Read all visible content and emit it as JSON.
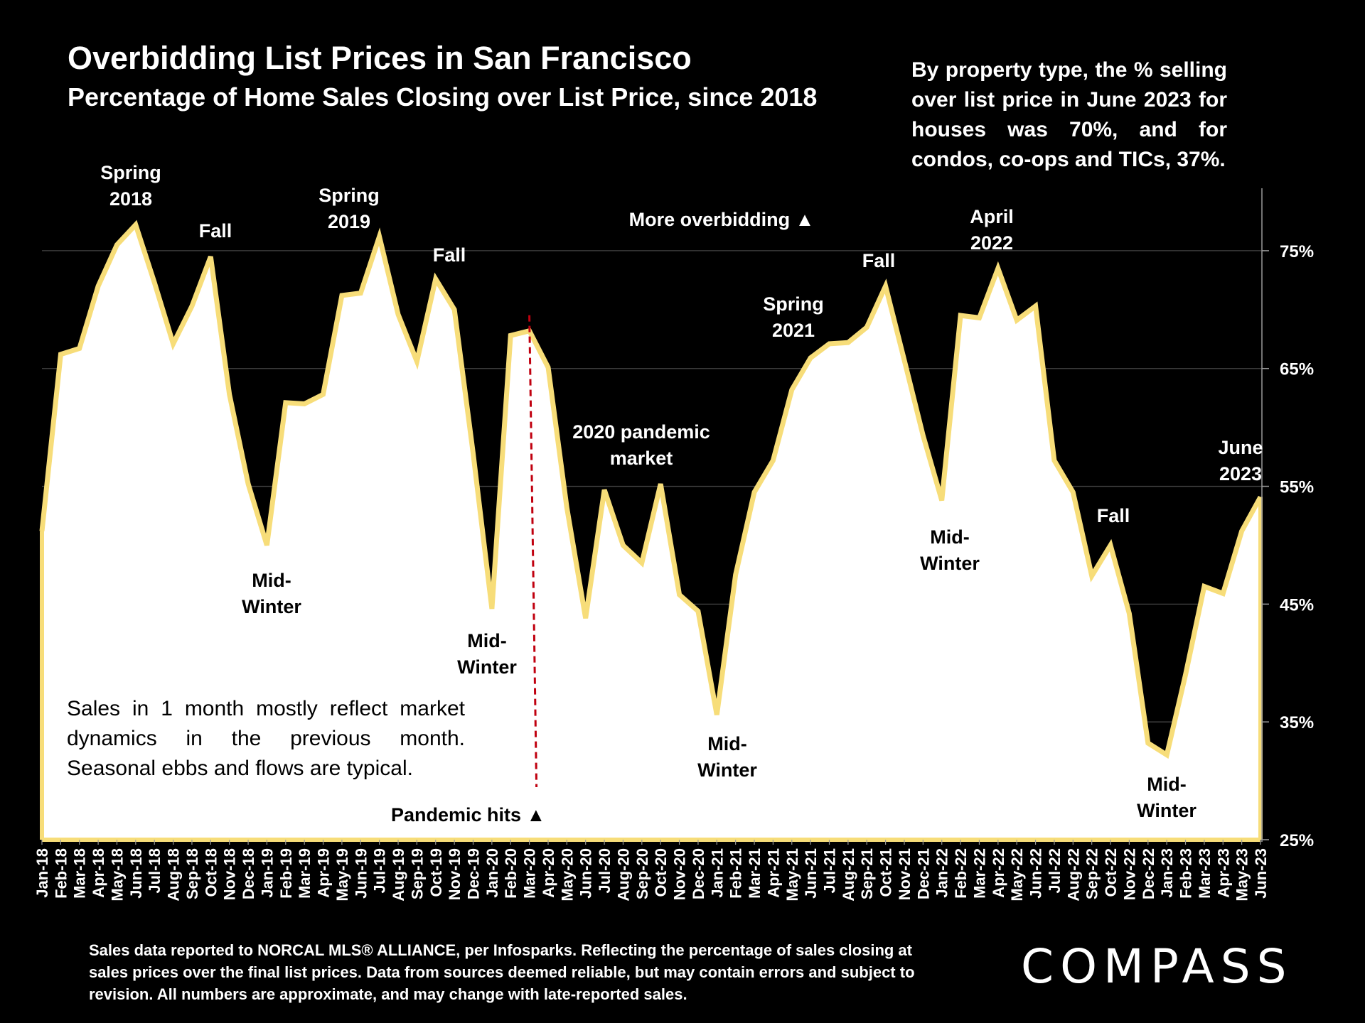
{
  "header": {
    "title": "Overbidding List Prices in San Francisco",
    "subtitle": "Percentage of Home Sales Closing over List Price, since 2018"
  },
  "side_note": "By property type, the % selling over list price in June 2023 for houses was 70%, and for condos, co-ops and TICs, 37%.",
  "note_box": "Sales in 1 month mostly reflect market dynamics in the previous month. Seasonal ebbs and flows are typical.",
  "footer": "Sales data reported to NORCAL MLS® ALLIANCE, per Infosparks. Reflecting the percentage of sales closing at sales prices over the final list prices. Data from sources deemed reliable, but may contain errors and subject to revision. All numbers are approximate, and may change with late-reported sales.",
  "logo": "COMPASS",
  "colors": {
    "background": "#000000",
    "area": "#ffffff",
    "line": "#f7dd79",
    "pandemic_marker": "#c0000f",
    "text": "#ffffff"
  },
  "chart_data": {
    "type": "area",
    "categories": [
      "Jan-18",
      "Feb-18",
      "Mar-18",
      "Apr-18",
      "May-18",
      "Jun-18",
      "Jul-18",
      "Aug-18",
      "Sep-18",
      "Oct-18",
      "Nov-18",
      "Dec-18",
      "Jan-19",
      "Feb-19",
      "Mar-19",
      "Apr-19",
      "May-19",
      "Jun-19",
      "Jul-19",
      "Aug-19",
      "Sep-19",
      "Oct-19",
      "Nov-19",
      "Dec-19",
      "Jan-20",
      "Feb-20",
      "Mar-20",
      "Apr-20",
      "May-20",
      "Jun-20",
      "Jul-20",
      "Aug-20",
      "Sep-20",
      "Oct-20",
      "Nov-20",
      "Dec-20",
      "Jan-21",
      "Feb-21",
      "Mar-21",
      "Apr-21",
      "May-21",
      "Jun-21",
      "Jul-21",
      "Aug-21",
      "Sep-21",
      "Oct-21",
      "Nov-21",
      "Dec-21",
      "Jan-22",
      "Feb-22",
      "Mar-22",
      "Apr-22",
      "May-22",
      "Jun-22",
      "Jul-22",
      "Aug-22",
      "Sep-22",
      "Oct-22",
      "Nov-22",
      "Dec-22",
      "Jan-23",
      "Feb-23",
      "Mar-23",
      "Apr-23",
      "May-23",
      "Jun-23"
    ],
    "values": [
      51.2,
      66.2,
      66.7,
      72.0,
      75.5,
      77.2,
      72.3,
      67.1,
      70.3,
      74.5,
      62.8,
      55.2,
      50.0,
      62.1,
      62.0,
      62.8,
      71.2,
      71.4,
      76.2,
      69.6,
      65.6,
      72.6,
      70.0,
      57.8,
      44.6,
      67.8,
      68.2,
      65.1,
      53.2,
      43.8,
      54.7,
      50.0,
      48.5,
      55.2,
      45.8,
      44.4,
      35.6,
      47.5,
      54.5,
      57.2,
      63.2,
      65.9,
      67.1,
      67.2,
      68.5,
      72.0,
      65.7,
      59.3,
      53.8,
      69.5,
      69.3,
      73.5,
      69.1,
      70.3,
      57.2,
      54.5,
      47.4,
      50.0,
      44.2,
      33.2,
      32.2,
      39.0,
      46.5,
      45.9,
      51.2,
      54.1
    ],
    "ylim": [
      25,
      80
    ],
    "yticks": [
      "25%",
      "35%",
      "45%",
      "55%",
      "65%",
      "75%"
    ],
    "ytick_values": [
      25,
      35,
      45,
      55,
      65,
      75
    ],
    "y_axis_position": "right",
    "grid": true,
    "annotations": [
      {
        "lines": [
          "Spring",
          "2018"
        ],
        "color": "white"
      },
      {
        "lines": [
          "Fall"
        ],
        "color": "white"
      },
      {
        "lines": [
          "Spring",
          "2019"
        ],
        "color": "white"
      },
      {
        "lines": [
          "Fall"
        ],
        "color": "white"
      },
      {
        "lines": [
          "More overbidding ▲"
        ],
        "color": "white"
      },
      {
        "lines": [
          "Spring",
          "2021"
        ],
        "color": "white"
      },
      {
        "lines": [
          "Fall"
        ],
        "color": "white"
      },
      {
        "lines": [
          "April",
          "2022"
        ],
        "color": "white"
      },
      {
        "lines": [
          "June",
          "2023"
        ],
        "color": "white"
      },
      {
        "lines": [
          "Fall"
        ],
        "color": "white"
      },
      {
        "lines": [
          "2020 pandemic",
          "market"
        ],
        "color": "white"
      },
      {
        "lines": [
          "Mid-",
          "Winter"
        ],
        "color": "black"
      },
      {
        "lines": [
          "Mid-",
          "Winter"
        ],
        "color": "black"
      },
      {
        "lines": [
          "Mid-",
          "Winter"
        ],
        "color": "black"
      },
      {
        "lines": [
          "Mid-",
          "Winter"
        ],
        "color": "black"
      },
      {
        "lines": [
          "Mid-",
          "Winter"
        ],
        "color": "black"
      }
    ],
    "pandemic_marker": {
      "label": "Pandemic hits ▲",
      "category": "Mar-20"
    }
  }
}
